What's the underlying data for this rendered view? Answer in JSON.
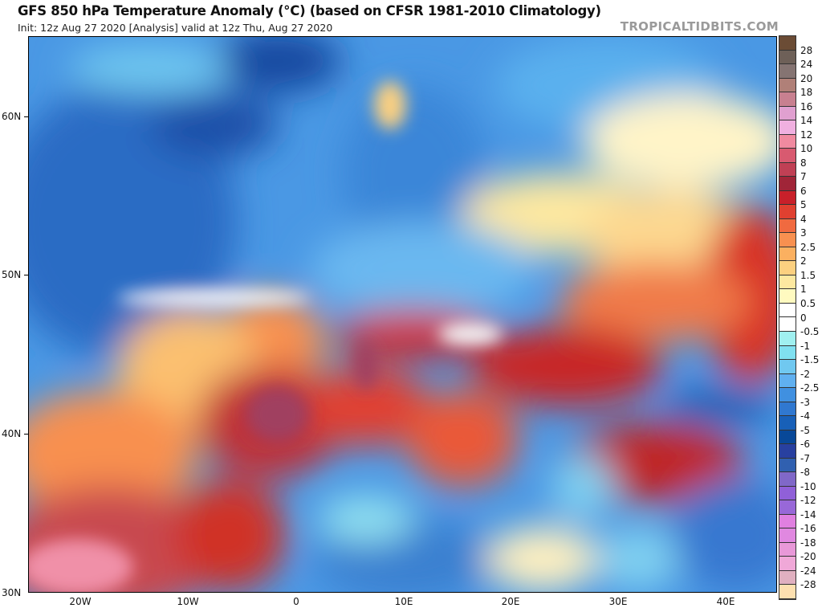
{
  "header": {
    "title": "GFS 850 hPa Temperature Anomaly (°C) (based on CFSR 1981-2010 Climatology)",
    "subtitle": "Init: 12z Aug 27 2020   [Analysis]   valid at 12z Thu, Aug 27 2020",
    "watermark": "TROPICALTIDBITS.COM"
  },
  "map": {
    "lat_labels": [
      "60N",
      "50N",
      "40N",
      "30N"
    ],
    "lon_labels": [
      "20W",
      "10W",
      "0",
      "10E",
      "20E",
      "30E",
      "40E"
    ],
    "lat_range": [
      30,
      65
    ],
    "lon_range": [
      -25,
      45
    ]
  },
  "colorbar": {
    "labels": [
      "28",
      "24",
      "20",
      "18",
      "16",
      "14",
      "12",
      "10",
      "8",
      "7",
      "6",
      "5",
      "4",
      "3",
      "2.5",
      "2",
      "1.5",
      "1",
      "0.5",
      "0",
      "-0.5",
      "-1",
      "-1.5",
      "-2",
      "-2.5",
      "-3",
      "-4",
      "-5",
      "-6",
      "-7",
      "-8",
      "-10",
      "-12",
      "-14",
      "-16",
      "-18",
      "-20",
      "-24",
      "-28"
    ],
    "colors": [
      "#6b4c35",
      "#6e6058",
      "#857472",
      "#b08078",
      "#c88090",
      "#e0a0d0",
      "#f0b0e0",
      "#f08aa0",
      "#d85a70",
      "#c04055",
      "#a02538",
      "#c8202a",
      "#e04030",
      "#f06a40",
      "#f89050",
      "#fbb060",
      "#fcd080",
      "#fde8a0",
      "#fffac0",
      "#ffffff",
      "#ffffff",
      "#a0f0f0",
      "#80e0f0",
      "#70c8f0",
      "#60b0f0",
      "#4090e0",
      "#3078d0",
      "#1860b8",
      "#084898",
      "#2840a0",
      "#3060b0",
      "#8068c8",
      "#9060d8",
      "#9868d8",
      "#e080e0",
      "#e088e0",
      "#e898d8",
      "#f0a8d8",
      "#e0b0c0",
      "#fde0b0"
    ]
  }
}
